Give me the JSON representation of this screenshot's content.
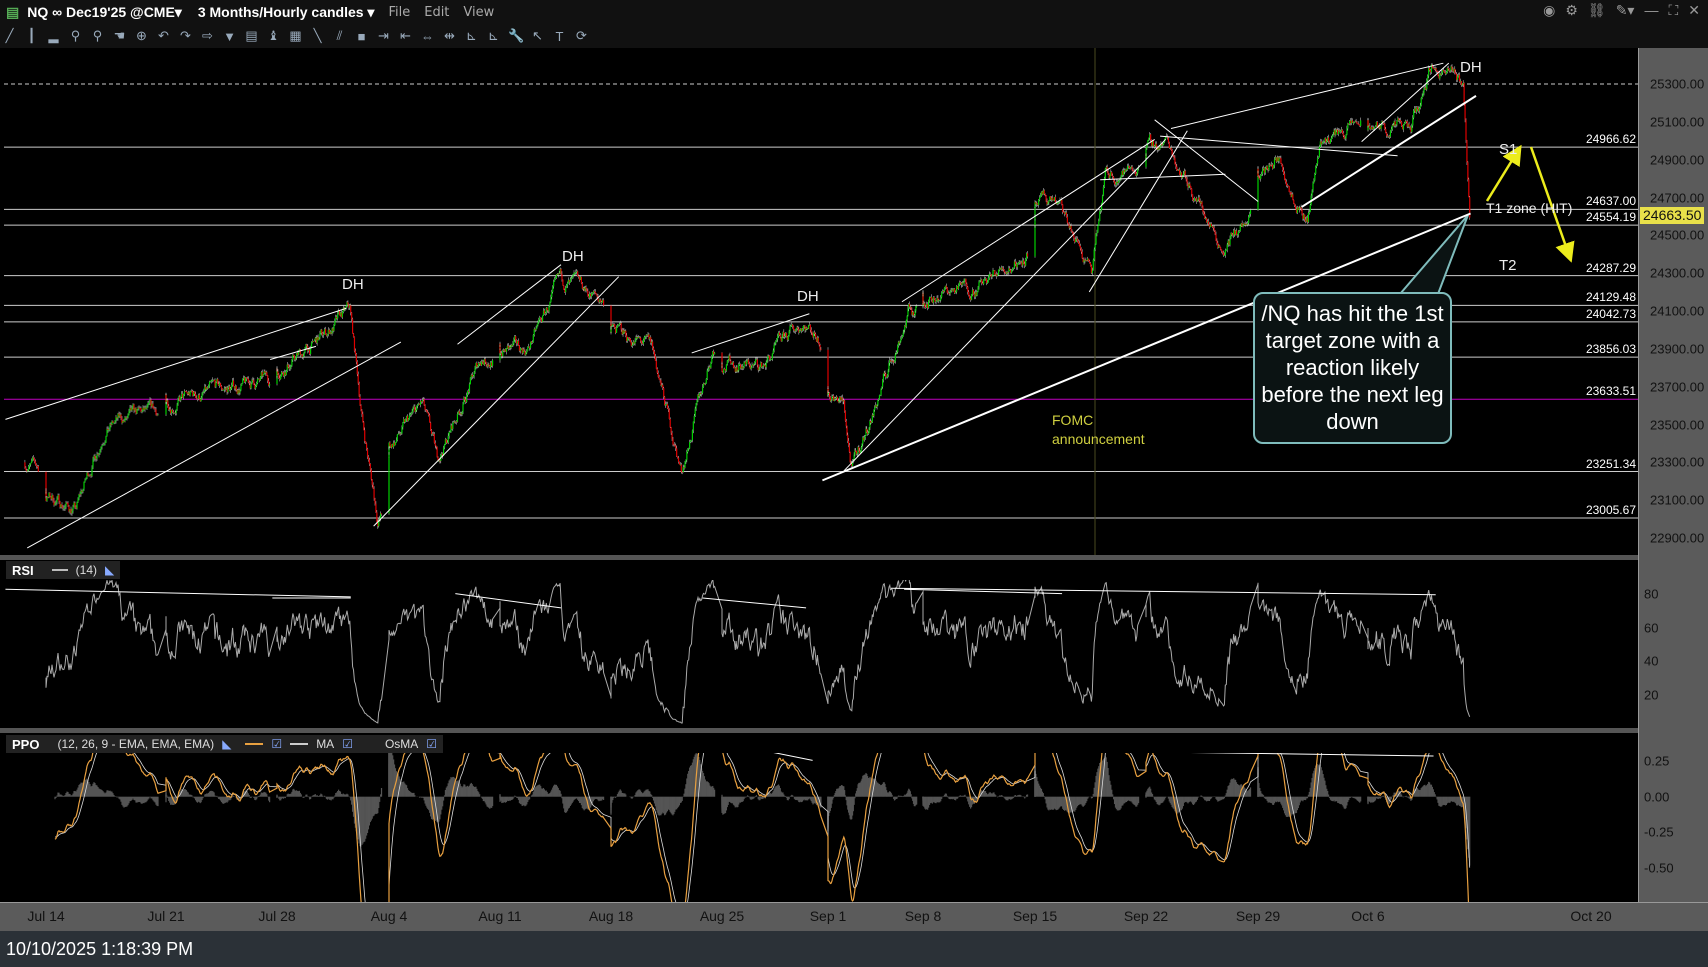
{
  "titlebar": {
    "symbol": "NQ ∞ Dec19'25 @CME▾",
    "period": "3 Months/Hourly candles ▾",
    "menus": [
      "File",
      "Edit",
      "View"
    ],
    "window_icons": [
      "record-icon",
      "gear-icon",
      "link-icon",
      "pin-icon",
      "minimize-icon",
      "maximize-icon",
      "close-icon"
    ]
  },
  "toolbar": {
    "icons": [
      "drawing-icon",
      "bars-icon",
      "volume-icon",
      "zoom-in-icon",
      "zoom-out-icon",
      "hand-icon",
      "crosshair-icon",
      "undo-icon",
      "redo-icon",
      "forward-icon",
      "dropdown-icon",
      "studies-icon",
      "strategy-icon",
      "pattern-icon",
      "trendline-icon",
      "channel-icon",
      "box-icon",
      "expand-right-icon",
      "expand-left-icon",
      "center-icon",
      "split-icon",
      "scale-icon",
      "scale-alt-icon",
      "wrench-icon",
      "cursor-icon",
      "text-icon",
      "refresh-icon"
    ]
  },
  "status": {
    "timestamp": "10/10/2025 1:18:39 PM"
  },
  "chart_data": {
    "type": "candlestick",
    "symbol": "NQ",
    "price_axis": {
      "ticks": [
        "25300.00",
        "25100.00",
        "24900.00",
        "24700.00",
        "24500.00",
        "24300.00",
        "24100.00",
        "23900.00",
        "23700.00",
        "23500.00",
        "23300.00",
        "23100.00",
        "22900.00"
      ],
      "range": [
        22830,
        25500
      ]
    },
    "time_axis": {
      "ticks": [
        "Jul 14",
        "Jul 21",
        "Jul 28",
        "Aug 4",
        "Aug 11",
        "Aug 18",
        "Aug 25",
        "Sep 1",
        "Sep 8",
        "Sep 15",
        "Sep 22",
        "Sep 29",
        "Oct 6",
        "Oct 20"
      ]
    },
    "last_price": "24663.50",
    "last_price_color": "#e8e04a",
    "levels": [
      {
        "value": "24966.62",
        "color": "#cccccc"
      },
      {
        "value": "24637.00",
        "color": "#cccccc"
      },
      {
        "value": "24554.19",
        "color": "#cccccc"
      },
      {
        "value": "24287.29",
        "color": "#cccccc"
      },
      {
        "value": "24129.48",
        "color": "#cccccc"
      },
      {
        "value": "24042.73",
        "color": "#cccccc"
      },
      {
        "value": "23856.03",
        "color": "#cccccc"
      },
      {
        "value": "23633.51",
        "color": "#c000c0"
      },
      {
        "value": "23251.34",
        "color": "#cccccc"
      },
      {
        "value": "23005.67",
        "color": "#cccccc"
      }
    ],
    "price_path": [
      [
        "2025-07-11T02:00",
        23300
      ],
      [
        "2025-07-15T06:00",
        23050
      ],
      [
        "2025-07-16T12:00",
        23500
      ],
      [
        "2025-07-22T10:00",
        23650
      ],
      [
        "2025-07-28T02:00",
        23800
      ],
      [
        "2025-07-29T12:00",
        23900
      ],
      [
        "2025-07-31T06:00",
        24100
      ],
      [
        "2025-07-31T20:00",
        23500
      ],
      [
        "2025-08-01T12:00",
        23000
      ],
      [
        "2025-08-05T12:00",
        23600
      ],
      [
        "2025-08-06T04:00",
        23300
      ],
      [
        "2025-08-08T04:00",
        23850
      ],
      [
        "2025-08-12T06:00",
        23900
      ],
      [
        "2025-08-13T18:00",
        24250
      ],
      [
        "2025-08-14T20:00",
        24200
      ],
      [
        "2025-08-19T20:00",
        23900
      ],
      [
        "2025-08-21T04:00",
        23250
      ],
      [
        "2025-08-22T14:00",
        23900
      ],
      [
        "2025-08-26T20:00",
        23800
      ],
      [
        "2025-08-28T20:00",
        24050
      ],
      [
        "2025-09-01T20:00",
        23600
      ],
      [
        "2025-09-02T06:00",
        23250
      ],
      [
        "2025-09-03T12:00",
        23600
      ],
      [
        "2025-09-05T06:00",
        24100
      ],
      [
        "2025-09-10T20:00",
        24250
      ],
      [
        "2025-09-15T20:00",
        24700
      ],
      [
        "2025-09-17T14:00",
        24300
      ],
      [
        "2025-09-18T04:00",
        24800
      ],
      [
        "2025-09-22T22:00",
        25000
      ],
      [
        "2025-09-24T12:00",
        24650
      ],
      [
        "2025-09-25T10:00",
        24450
      ],
      [
        "2025-09-29T22:00",
        24900
      ],
      [
        "2025-10-01T06:00",
        24600
      ],
      [
        "2025-10-01T20:00",
        25000
      ],
      [
        "2025-10-03T20:00",
        25100
      ],
      [
        "2025-10-07T22:00",
        25050
      ],
      [
        "2025-10-08T20:00",
        25400
      ],
      [
        "2025-10-10T06:00",
        25300
      ],
      [
        "2025-10-10T13:00",
        24600
      ]
    ],
    "annotations": {
      "dh": "DH",
      "s1": "S1",
      "t1": "T1 zone (HIT)",
      "t2": "T2",
      "fomc_line1": "FOMC",
      "fomc_line2": "announcement",
      "callout": "/NQ has hit the 1st target zone with a reaction likely before the next leg down"
    },
    "colors": {
      "up": "#00d000",
      "down": "#e00000",
      "fomc": "#d0d040",
      "arrow": "#ecec1c",
      "callout_border": "#7fbcbc",
      "ppo": "#e8a040"
    },
    "rsi": {
      "label": "RSI",
      "params": "(14)",
      "ticks": [
        "80",
        "60",
        "40",
        "20"
      ],
      "range": [
        0,
        100
      ]
    },
    "ppo": {
      "label": "PPO",
      "params": "(12, 26, 9 - EMA, EMA, EMA)",
      "ma_label": "MA",
      "osma_label": "OsMA",
      "ticks": [
        "0.25",
        "0.00",
        "-0.25",
        "-0.50"
      ]
    }
  }
}
